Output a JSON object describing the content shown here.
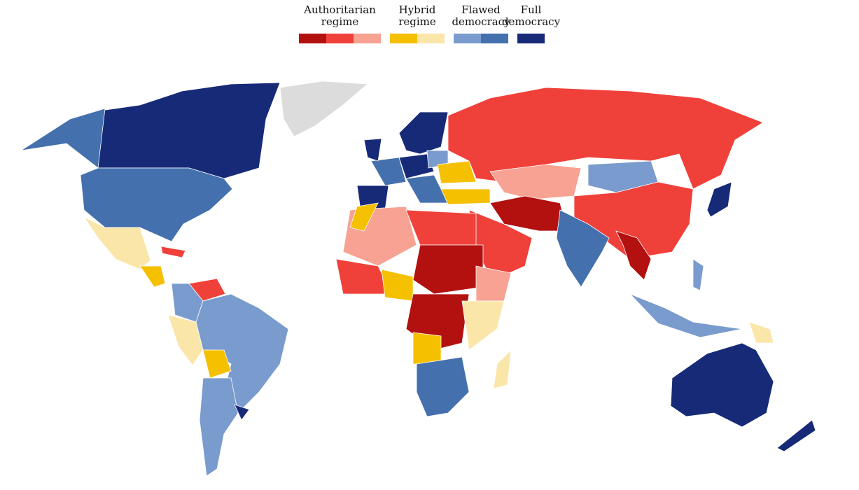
{
  "legend": [
    {
      "lines": [
        "Authoritarian",
        "regime"
      ],
      "colors": [
        "#b31010",
        "#f0403a",
        "#f7a292"
      ]
    },
    {
      "lines": [
        "Hybrid",
        "regime"
      ],
      "colors": [
        "#f5c000",
        "#fbe6aa"
      ]
    },
    {
      "lines": [
        "Flawed",
        "democracy"
      ],
      "colors": [
        "#7a9bcd",
        "#4470ad"
      ]
    },
    {
      "lines": [
        "Full",
        "democracy"
      ],
      "colors": [
        "#172a78"
      ]
    }
  ]
}
